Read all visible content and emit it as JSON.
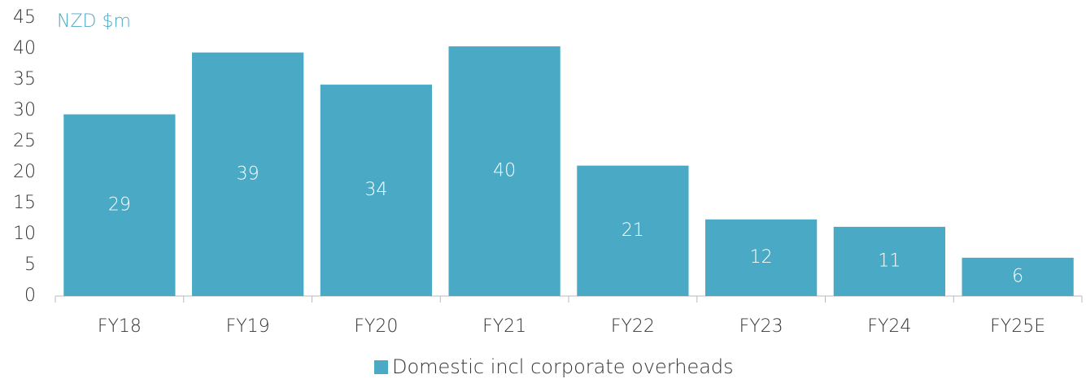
{
  "chart_data": {
    "type": "bar",
    "ylabel": "NZD  $m",
    "categories": [
      "FY18",
      "FY19",
      "FY20",
      "FY21",
      "FY22",
      "FY23",
      "FY24",
      "FY25E"
    ],
    "series": [
      {
        "name": "Domestic incl corporate overheads",
        "color": "#4aaac6",
        "values": [
          29.4,
          39.4,
          34.2,
          40.4,
          21.1,
          12.4,
          11.2,
          6.2
        ],
        "value_labels": [
          "29",
          "39",
          "34",
          "40",
          "21",
          "12",
          "11",
          "6"
        ]
      }
    ],
    "ylim": [
      0,
      45
    ],
    "yticks": [
      0,
      5,
      10,
      15,
      20,
      25,
      30,
      35,
      40,
      45
    ],
    "grid": false,
    "legend": "bottom"
  }
}
